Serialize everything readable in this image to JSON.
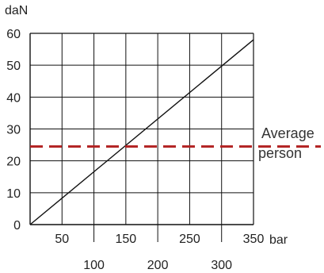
{
  "chart_data": {
    "type": "line",
    "title": "",
    "xlabel": "bar",
    "ylabel": "daN",
    "xlim": [
      0,
      350
    ],
    "ylim": [
      0,
      60
    ],
    "x_ticks": [
      50,
      100,
      150,
      200,
      250,
      300,
      350
    ],
    "y_ticks": [
      0,
      10,
      20,
      30,
      40,
      50,
      60
    ],
    "grid": true,
    "series": [
      {
        "x": [
          0,
          350
        ],
        "y": [
          0,
          58
        ],
        "color": "#111111"
      }
    ],
    "reference_line": {
      "y": 24.5,
      "label_line1": "Average",
      "label_line2": "person",
      "color": "#b22222",
      "style": "dashed"
    }
  }
}
